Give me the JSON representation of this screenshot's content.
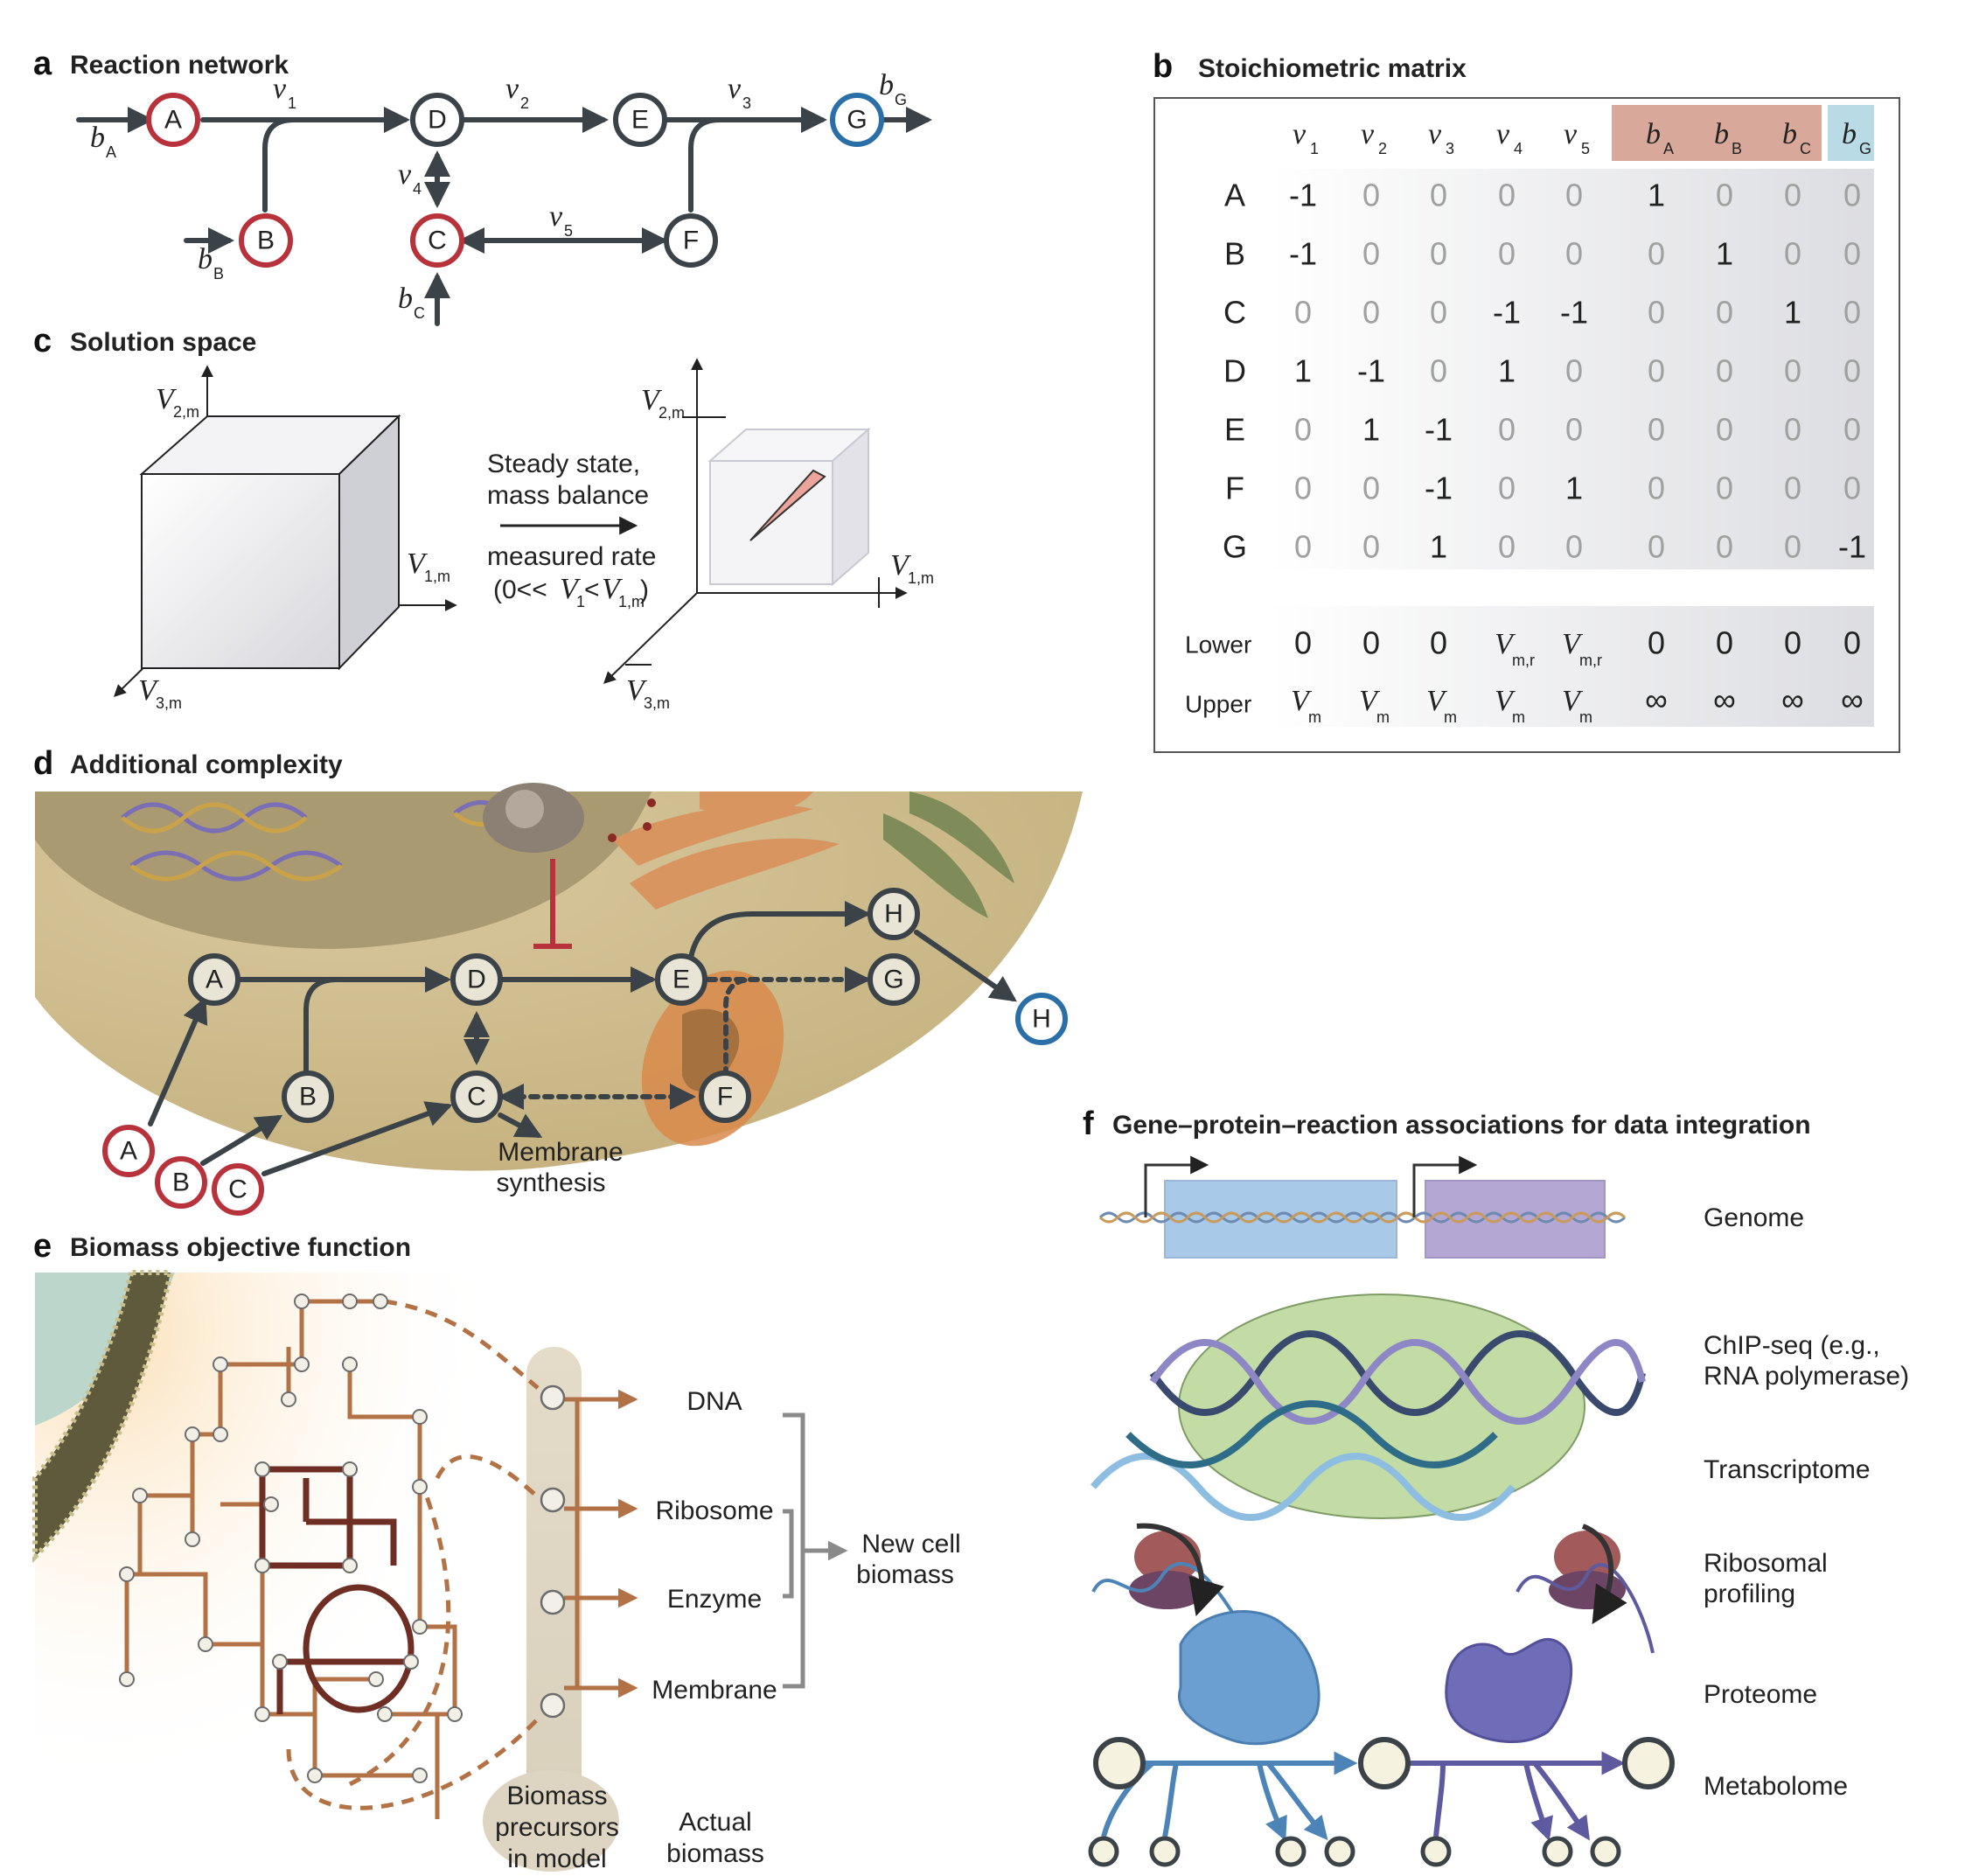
{
  "panels": {
    "a": {
      "letter": "a",
      "title": "Reaction network"
    },
    "b": {
      "letter": "b",
      "title": "Stoichiometric matrix"
    },
    "c": {
      "letter": "c",
      "title": "Solution space"
    },
    "d": {
      "letter": "d",
      "title": "Additional complexity"
    },
    "e": {
      "letter": "e",
      "title": "Biomass objective function"
    },
    "f": {
      "letter": "f",
      "title": "Gene–protein–reaction associations for data integration"
    }
  },
  "network": {
    "nodes": [
      "A",
      "B",
      "C",
      "D",
      "E",
      "F",
      "G"
    ],
    "fluxes": [
      "v",
      "v",
      "v",
      "v",
      "v"
    ],
    "flux_subs": [
      "1",
      "2",
      "3",
      "4",
      "5"
    ],
    "exchanges": [
      "b",
      "b",
      "b",
      "b"
    ],
    "exchange_subs": [
      "A",
      "B",
      "C",
      "G"
    ]
  },
  "matrix": {
    "col_italic": [
      "v",
      "v",
      "v",
      "v",
      "v",
      "b",
      "b",
      "b",
      "b"
    ],
    "col_subs": [
      "1",
      "2",
      "3",
      "4",
      "5",
      "A",
      "B",
      "C",
      "G"
    ],
    "rows": [
      "A",
      "B",
      "C",
      "D",
      "E",
      "F",
      "G"
    ],
    "values": [
      [
        "-1",
        "0",
        "0",
        "0",
        "0",
        "1",
        "0",
        "0",
        "0"
      ],
      [
        "-1",
        "0",
        "0",
        "0",
        "0",
        "0",
        "1",
        "0",
        "0"
      ],
      [
        "0",
        "0",
        "0",
        "-1",
        "-1",
        "0",
        "0",
        "1",
        "0"
      ],
      [
        "1",
        "-1",
        "0",
        "1",
        "0",
        "0",
        "0",
        "0",
        "0"
      ],
      [
        "0",
        "1",
        "-1",
        "0",
        "0",
        "0",
        "0",
        "0",
        "0"
      ],
      [
        "0",
        "0",
        "-1",
        "0",
        "1",
        "0",
        "0",
        "0",
        "0"
      ],
      [
        "0",
        "0",
        "1",
        "0",
        "0",
        "0",
        "0",
        "0",
        "-1"
      ]
    ],
    "lower_label": "Lower",
    "upper_label": "Upper",
    "lower": [
      {
        "main": "0",
        "sub": ""
      },
      {
        "main": "0",
        "sub": ""
      },
      {
        "main": "0",
        "sub": ""
      },
      {
        "main": "V",
        "sub": "m,r"
      },
      {
        "main": "V",
        "sub": "m,r"
      },
      {
        "main": "0",
        "sub": ""
      },
      {
        "main": "0",
        "sub": ""
      },
      {
        "main": "0",
        "sub": ""
      },
      {
        "main": "0",
        "sub": ""
      }
    ],
    "upper": [
      {
        "main": "V",
        "sub": "m"
      },
      {
        "main": "V",
        "sub": "m"
      },
      {
        "main": "V",
        "sub": "m"
      },
      {
        "main": "V",
        "sub": "m"
      },
      {
        "main": "V",
        "sub": "m"
      },
      {
        "main": "∞",
        "sub": ""
      },
      {
        "main": "∞",
        "sub": ""
      },
      {
        "main": "∞",
        "sub": ""
      },
      {
        "main": "∞",
        "sub": ""
      }
    ]
  },
  "solution": {
    "axis_main": "V",
    "axis_subs": [
      "1,m",
      "2,m",
      "3,m"
    ],
    "transform_line1": "Steady state,",
    "transform_line2": "mass balance",
    "transform_line3": "measured rate",
    "condition_prefix": "(0<<",
    "condition_v1_main": "V",
    "condition_v1_sub": "1",
    "condition_mid": "<",
    "condition_v2_main": "V",
    "condition_v2_sub": "1,m",
    "condition_suffix": ")"
  },
  "complexity": {
    "nodes": [
      "A",
      "B",
      "C",
      "D",
      "E",
      "F",
      "G",
      "H",
      "H",
      "A",
      "B",
      "C"
    ],
    "membrane_line1": "Membrane",
    "membrane_line2": "synthesis"
  },
  "biomass": {
    "outputs": [
      "DNA",
      "Ribosome",
      "Enzyme",
      "Membrane"
    ],
    "result_line1": "New cell",
    "result_line2": "biomass",
    "precursor_lines": [
      "Biomass",
      "precursors",
      "in model"
    ],
    "actual_lines": [
      "Actual",
      "biomass"
    ]
  },
  "gpr": {
    "layers": {
      "genome": "Genome",
      "chip_line1": "ChIP-seq (e.g.,",
      "chip_line2": "RNA polymerase)",
      "transcriptome": "Transcriptome",
      "ribo_line1": "Ribosomal",
      "ribo_line2": "profiling",
      "proteome": "Proteome",
      "metabolome": "Metabolome"
    }
  },
  "colors": {
    "dark": "#3b4348",
    "red": "#b7323a",
    "blue": "#2b6fa8",
    "brown": "#b27245",
    "darkbrown": "#6e2e24",
    "cell": "#cdbb8e",
    "gene1": "#a9c9e8",
    "gene2": "#b4a7d4"
  }
}
